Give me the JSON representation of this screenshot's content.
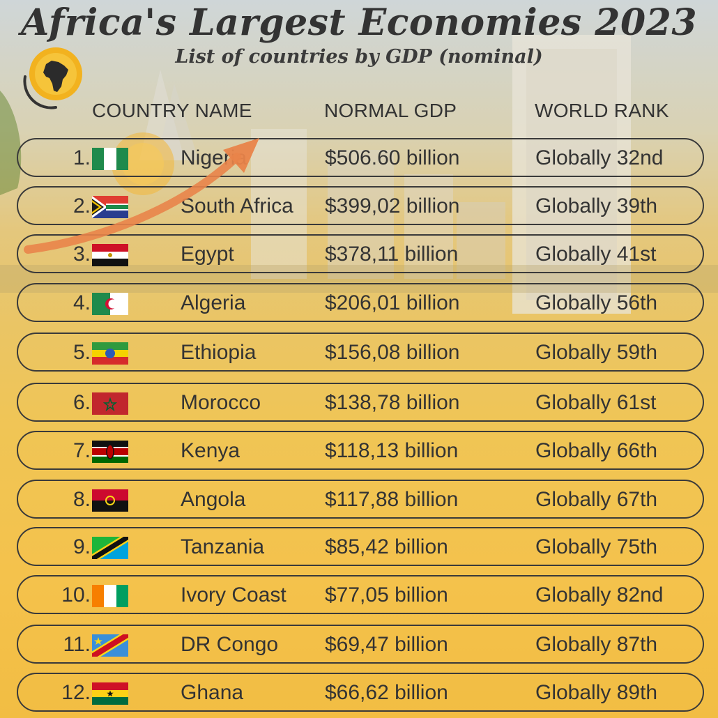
{
  "title": "Africa's Largest Economies 2023",
  "subtitle": "List of countries by GDP (nominal)",
  "logo_icon": "africa-map-icon",
  "headers": {
    "country": "COUNTRY NAME",
    "gdp": "NORMAL GDP",
    "rank": "WORLD RANK"
  },
  "rows": [
    {
      "rank": "1.",
      "name": "Nigeria",
      "gdp": "$506.60 billion",
      "world_rank": "Globally 32nd",
      "flag_icon": "flag-nigeria-icon"
    },
    {
      "rank": "2.",
      "name": "South Africa",
      "gdp": "$399,02 billion",
      "world_rank": "Globally 39th",
      "flag_icon": "flag-south-africa-icon"
    },
    {
      "rank": "3.",
      "name": "Egypt",
      "gdp": "$378,11 billion",
      "world_rank": "Globally 41st",
      "flag_icon": "flag-egypt-icon"
    },
    {
      "rank": "4.",
      "name": "Algeria",
      "gdp": "$206,01 billion",
      "world_rank": "Globally 56th",
      "flag_icon": "flag-algeria-icon"
    },
    {
      "rank": "5.",
      "name": "Ethiopia",
      "gdp": "$156,08 billion",
      "world_rank": "Globally 59th",
      "flag_icon": "flag-ethiopia-icon"
    },
    {
      "rank": "6.",
      "name": "Morocco",
      "gdp": "$138,78 billion",
      "world_rank": "Globally 61st",
      "flag_icon": "flag-morocco-icon"
    },
    {
      "rank": "7.",
      "name": "Kenya",
      "gdp": "$118,13 billion",
      "world_rank": "Globally 66th",
      "flag_icon": "flag-kenya-icon"
    },
    {
      "rank": "8.",
      "name": "Angola",
      "gdp": "$117,88 billion",
      "world_rank": "Globally 67th",
      "flag_icon": "flag-angola-icon"
    },
    {
      "rank": "9.",
      "name": "Tanzania",
      "gdp": "$85,42 billion",
      "world_rank": "Globally 75th",
      "flag_icon": "flag-tanzania-icon"
    },
    {
      "rank": "10.",
      "name": "Ivory Coast",
      "gdp": "$77,05 billion",
      "world_rank": "Globally 82nd",
      "flag_icon": "flag-ivory-coast-icon"
    },
    {
      "rank": "11.",
      "name": "DR Congo",
      "gdp": "$69,47 billion",
      "world_rank": "Globally 87th",
      "flag_icon": "flag-dr-congo-icon"
    },
    {
      "rank": "12.",
      "name": "Ghana",
      "gdp": "$66,62 billion",
      "world_rank": "Globally 89th",
      "flag_icon": "flag-ghana-icon"
    }
  ],
  "colors": {
    "text": "#333333",
    "border": "#3a3a3a",
    "arrow": "#e9844a",
    "logo": "#f2b21f"
  }
}
